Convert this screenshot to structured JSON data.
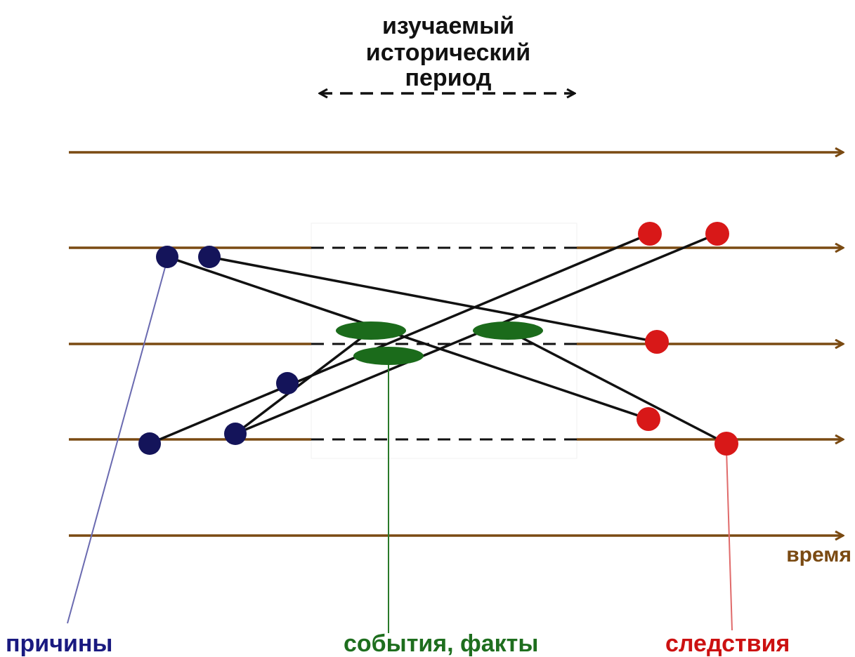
{
  "period": {
    "label_lines": [
      "изучаемый",
      "исторический",
      "период"
    ],
    "color": "#111111"
  },
  "time_axis": {
    "label": "время",
    "color": "#7a4a12"
  },
  "labels": {
    "causes": {
      "text": "причины",
      "color": "#1a1a80"
    },
    "events": {
      "text": "события, факты",
      "color": "#1e6e1e"
    },
    "consequences": {
      "text": "следствия",
      "color": "#cc1111"
    }
  },
  "colors": {
    "timeline": "#7a4a12",
    "cause_dot": "#14145a",
    "event_ellipse": "#1b6b1b",
    "consequence_dot": "#d81818",
    "connector": "#111111",
    "cause_leader": "#6a6ab0",
    "event_leader": "#2a7a2a",
    "consequence_leader": "#e06a6a"
  }
}
